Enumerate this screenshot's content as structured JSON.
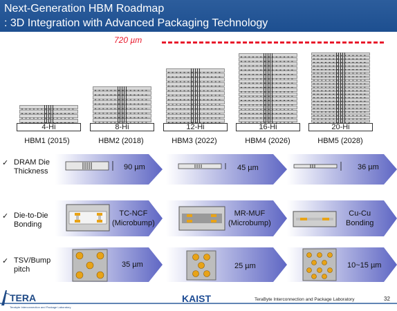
{
  "title": {
    "line1": "Next-Generation HBM Roadmap",
    "line2": ": 3D Integration with Advanced Packaging Technology"
  },
  "height_limit": "720 µm",
  "generations": [
    {
      "name": "HBM1 (2015)",
      "stack": "4-Hi",
      "dies": 4
    },
    {
      "name": "HBM2 (2018)",
      "stack": "8-Hi",
      "dies": 8
    },
    {
      "name": "HBM3 (2022)",
      "stack": "12-Hi",
      "dies": 12
    },
    {
      "name": "HBM4 (2026)",
      "stack": "16-Hi",
      "dies": 16
    },
    {
      "name": "HBM5 (2028)",
      "stack": "20-Hi",
      "dies": 20
    }
  ],
  "rows": [
    {
      "label_line1": "DRAM Die",
      "label_line2": "Thickness",
      "values": [
        "90 µm",
        "45 µm",
        "36 µm"
      ]
    },
    {
      "label_line1": "Die-to-Die",
      "label_line2": "Bonding",
      "values": [
        [
          "TC-NCF",
          "(Microbump)"
        ],
        [
          "MR-MUF",
          "(Microbump)"
        ],
        [
          "Cu-Cu",
          "Bonding"
        ]
      ]
    },
    {
      "label_line1": "TSV/Bump",
      "label_line2": "pitch",
      "values": [
        "35 µm",
        "25 µm",
        "10~15 µm"
      ],
      "bump_counts": [
        5,
        5,
        10
      ]
    }
  ],
  "footer": {
    "logo_left": "TERA",
    "logo_left_sub": "Terabyte Interconnection and Package Laboratory",
    "logo_center": "KAIST",
    "lab_name": "TeraByte Interconnection and Package Laboratory",
    "page_number": "32"
  },
  "colors": {
    "title_bg": "#1d4f90",
    "accent_red": "#e8192c",
    "arrow_blue": "#5f67c4",
    "bump_gold": "#e8a317"
  }
}
